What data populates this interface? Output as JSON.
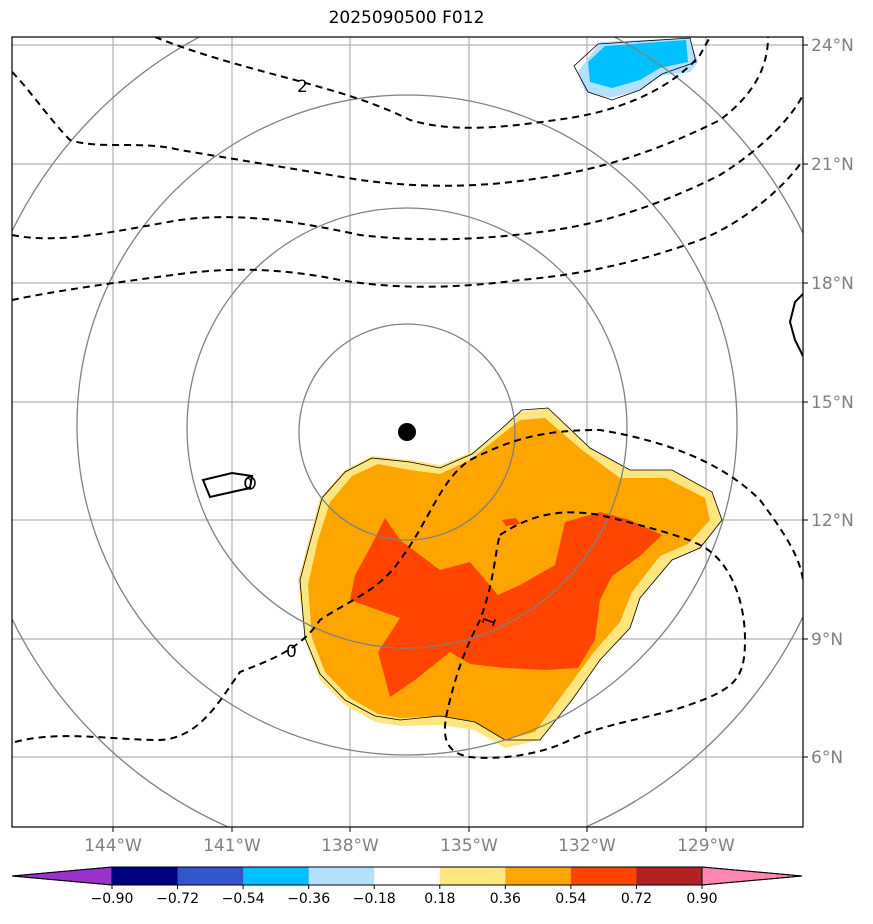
{
  "title": "2025090500 F012",
  "lat_labels": [
    "24°N",
    "21°N",
    "18°N",
    "15°N",
    "12°N",
    "9°N",
    "6°N"
  ],
  "lon_labels": [
    "144°W",
    "141°W",
    "138°W",
    "135°W",
    "132°W",
    "129°W"
  ],
  "contour_labels": [
    "2",
    "1",
    "0",
    "0"
  ],
  "colorbar": {
    "tick_labels": [
      "−0.90",
      "−0.72",
      "−0.54",
      "−0.36",
      "−0.18",
      "0.18",
      "0.36",
      "0.54",
      "0.72",
      "0.90"
    ],
    "colors": [
      "#9933cc",
      "#000080",
      "#3355cc",
      "#00bfff",
      "#b3e0ff",
      "#ffffff",
      "#ffe680",
      "#ffa500",
      "#ff4500",
      "#b22222",
      "#ff85b3"
    ]
  },
  "colors": {
    "contour": "#000000",
    "range_ring": "#808080",
    "grid": "#b0b0b0",
    "center_marker": "#000000"
  }
}
